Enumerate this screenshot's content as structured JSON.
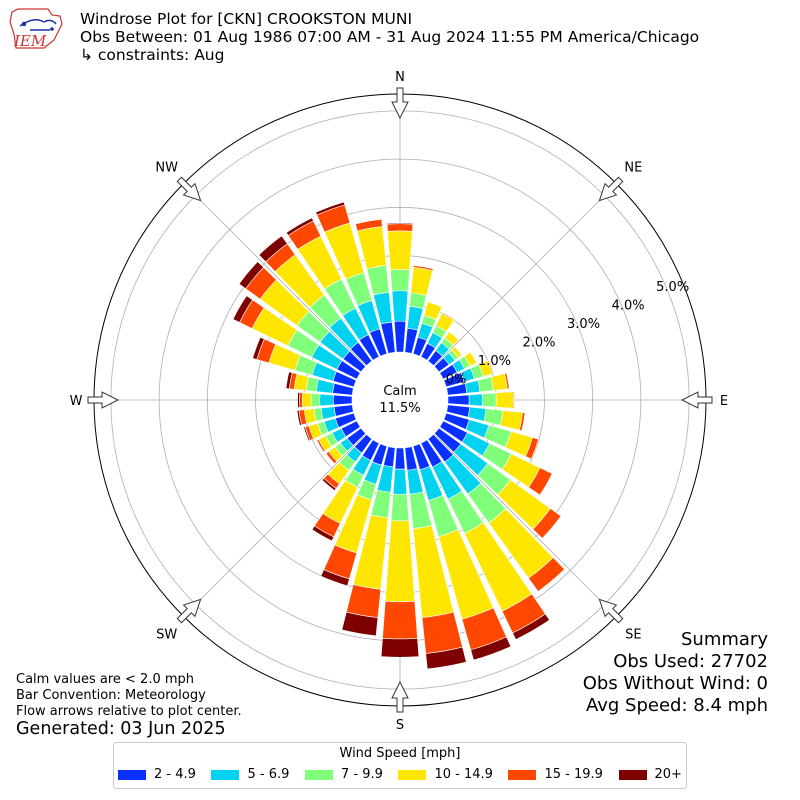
{
  "header": {
    "logo_text": "IEM",
    "title": "Windrose Plot for [CKN] CROOKSTON MUNI",
    "obs_between": "Obs Between: 01 Aug 1986 07:00 AM - 31 Aug 2024 11:55 PM America/Chicago",
    "constraints": "↳ constraints: Aug"
  },
  "summary": {
    "title": "Summary",
    "obs_used": "Obs Used: 27702",
    "obs_without_wind": "Obs Without Wind: 0",
    "avg_speed": "Avg Speed: 8.4 mph"
  },
  "notes": {
    "calm_note": "Calm values are < 2.0 mph",
    "bar_convention": "Bar Convention: Meteorology",
    "flow_arrows": "Flow arrows relative to plot center.",
    "generated": "Generated: 03 Jun 2025"
  },
  "chart_data": {
    "type": "windrose",
    "title": "Windrose Plot for [CKN] CROOKSTON MUNI",
    "calm_label": "Calm",
    "calm_value": "11.5%",
    "calm_percent": 11.5,
    "radial_max_percent": 5.0,
    "radial_tick_labels": [
      "0.0%",
      "1.0%",
      "2.0%",
      "3.0%",
      "4.0%",
      "5.0%"
    ],
    "compass_labels": [
      "N",
      "NE",
      "E",
      "SE",
      "S",
      "SW",
      "W",
      "NW"
    ],
    "grid": true,
    "legend_title": "Wind Speed [mph]",
    "legend_placement": "bottom",
    "speed_bins": [
      {
        "label": "2 - 4.9",
        "color": "#0a30ff"
      },
      {
        "label": "5 - 6.9",
        "color": "#00d2ef"
      },
      {
        "label": "7 - 9.9",
        "color": "#80ff7a"
      },
      {
        "label": "10 - 14.9",
        "color": "#ffe600"
      },
      {
        "label": "15 - 19.9",
        "color": "#ff4700"
      },
      {
        "label": "20+",
        "color": "#7f0000"
      }
    ],
    "direction_step_deg": 10,
    "directions_deg": [
      0,
      10,
      20,
      30,
      40,
      50,
      60,
      70,
      80,
      90,
      100,
      110,
      120,
      130,
      140,
      150,
      160,
      170,
      180,
      190,
      200,
      210,
      220,
      230,
      240,
      250,
      260,
      270,
      280,
      290,
      300,
      310,
      320,
      330,
      340,
      350
    ],
    "cumulative_percent": [
      [
        0.64,
        1.27,
        1.71,
        2.51,
        2.66,
        2.68
      ],
      [
        0.5,
        0.96,
        1.24,
        1.77,
        1.81,
        1.81
      ],
      [
        0.36,
        0.66,
        0.83,
        1.12,
        1.12,
        1.12
      ],
      [
        0.31,
        0.56,
        0.72,
        1.0,
        1.02,
        1.02
      ],
      [
        0.27,
        0.47,
        0.59,
        0.75,
        0.76,
        0.76
      ],
      [
        0.26,
        0.41,
        0.5,
        0.59,
        0.6,
        0.6
      ],
      [
        0.32,
        0.49,
        0.62,
        0.77,
        0.78,
        0.78
      ],
      [
        0.39,
        0.61,
        0.8,
        1.0,
        1.02,
        1.02
      ],
      [
        0.4,
        0.67,
        0.95,
        1.24,
        1.28,
        1.28
      ],
      [
        0.44,
        0.72,
        1.0,
        1.36,
        1.38,
        1.38
      ],
      [
        0.46,
        0.8,
        1.15,
        1.56,
        1.61,
        1.61
      ],
      [
        0.5,
        0.92,
        1.4,
        1.86,
        1.99,
        1.99
      ],
      [
        0.56,
        1.07,
        1.57,
        2.23,
        2.51,
        2.51
      ],
      [
        0.56,
        1.25,
        1.83,
        2.85,
        3.12,
        3.12
      ],
      [
        0.59,
        1.41,
        2.15,
        3.56,
        3.9,
        3.9
      ],
      [
        0.55,
        1.29,
        2.08,
        3.87,
        4.37,
        4.52
      ],
      [
        0.51,
        1.17,
        1.95,
        3.73,
        4.39,
        4.61
      ],
      [
        0.47,
        0.97,
        1.69,
        3.54,
        4.29,
        4.61
      ],
      [
        0.44,
        0.96,
        1.51,
        3.19,
        3.96,
        4.34
      ],
      [
        0.4,
        0.93,
        1.46,
        2.95,
        3.54,
        3.92
      ],
      [
        0.41,
        0.82,
        1.16,
        2.3,
        2.86,
        3.01
      ],
      [
        0.4,
        0.74,
        1.02,
        1.85,
        2.16,
        2.25
      ],
      [
        0.36,
        0.59,
        0.81,
        1.15,
        1.27,
        1.32
      ],
      [
        0.36,
        0.53,
        0.67,
        0.83,
        0.9,
        0.91
      ],
      [
        0.36,
        0.57,
        0.72,
        0.88,
        0.92,
        0.92
      ],
      [
        0.4,
        0.64,
        0.78,
        0.97,
        1.05,
        1.08
      ],
      [
        0.38,
        0.65,
        0.8,
        1.0,
        1.11,
        1.15
      ],
      [
        0.39,
        0.67,
        0.85,
        1.03,
        1.09,
        1.13
      ],
      [
        0.41,
        0.75,
        0.96,
        1.21,
        1.31,
        1.38
      ],
      [
        0.45,
        0.9,
        1.27,
        1.83,
        2.09,
        2.18
      ],
      [
        0.46,
        1.04,
        1.59,
        2.41,
        2.7,
        2.85
      ],
      [
        0.46,
        1.05,
        1.64,
        2.58,
        2.95,
        3.12
      ],
      [
        0.48,
        1.1,
        1.69,
        2.72,
        3.0,
        3.2
      ],
      [
        0.51,
        1.12,
        1.79,
        2.78,
        3.13,
        3.2
      ],
      [
        0.54,
        1.15,
        1.75,
        2.82,
        3.21,
        3.27
      ],
      [
        0.63,
        1.25,
        1.81,
        2.62,
        2.77,
        2.77
      ]
    ]
  }
}
